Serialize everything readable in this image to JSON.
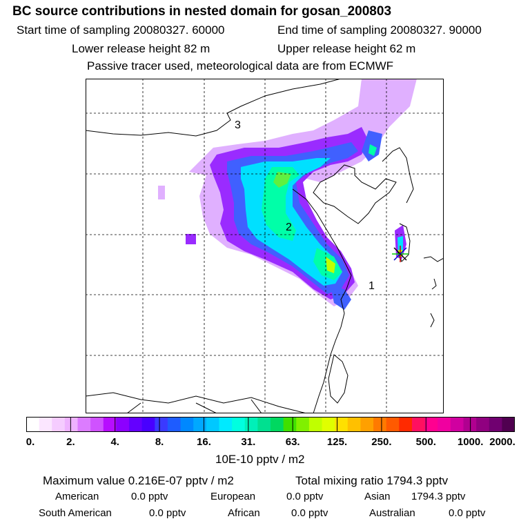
{
  "header": {
    "title": "BC  source contributions in nested domain for gosan_200803",
    "start_sampling": "Start time of sampling 20080327. 60000",
    "end_sampling": "End time of sampling 20080327. 90000",
    "lower_release": "Lower release height   82 m",
    "upper_release": "Upper release height   62 m",
    "tracer_note": "Passive tracer used, meteorological data are from ECMWF"
  },
  "map": {
    "region_labels": [
      "1",
      "2",
      "3"
    ]
  },
  "colorbar": {
    "tick_labels": [
      "0.",
      "2.",
      "4.",
      "8.",
      "16.",
      "31.",
      "63.",
      "125.",
      "250.",
      "500.",
      "1000.",
      "2000."
    ],
    "colors": [
      "#ffffff",
      "#fbe6ff",
      "#f5ccff",
      "#eeb2ff",
      "#dc7cff",
      "#cf52ff",
      "#b70dff",
      "#8c00ff",
      "#6400ff",
      "#4800ff",
      "#3a3aff",
      "#1e5cff",
      "#0088ff",
      "#00a8ff",
      "#00c8ff",
      "#00eaff",
      "#00ffe0",
      "#00f0b8",
      "#00e090",
      "#00d860",
      "#40e000",
      "#80f000",
      "#c0ff00",
      "#e0ff00",
      "#ffe000",
      "#ffc000",
      "#ffa000",
      "#ff7a00",
      "#ff5a00",
      "#ff2a00",
      "#ff1060",
      "#ff0090",
      "#f000a0",
      "#d000a0",
      "#b00090",
      "#900080",
      "#700070",
      "#500050"
    ],
    "units": "10E-10 pptv / m2"
  },
  "stats": {
    "max_value": "Maximum value  0.216E-07 pptv / m2",
    "total_mixing": "Total mixing ratio     1794.3 pptv",
    "sources": [
      {
        "name": "American",
        "value": "0.0 pptv"
      },
      {
        "name": "European",
        "value": "0.0 pptv"
      },
      {
        "name": "Asian",
        "value": "1794.3 pptv"
      },
      {
        "name": "South American",
        "value": "0.0 pptv"
      },
      {
        "name": "African",
        "value": "0.0 pptv"
      },
      {
        "name": "Australian",
        "value": "0.0 pptv"
      }
    ]
  }
}
